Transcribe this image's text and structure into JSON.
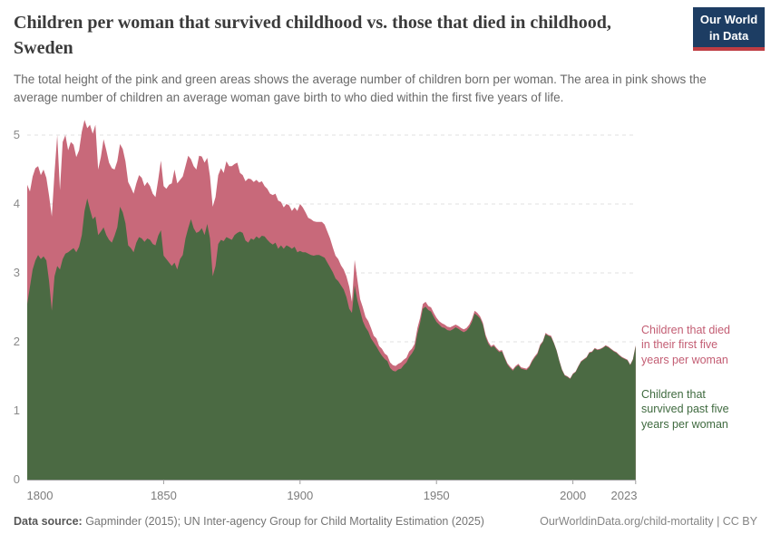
{
  "header": {
    "title": "Children per woman that survived childhood vs. those that died in childhood, Sweden",
    "subtitle": "The total height of the pink and green areas shows the average number of children born per woman. The area in pink shows the average number of children an average woman gave birth to who died within the first five years of life.",
    "logo": {
      "line1": "Our World",
      "line2": "in Data",
      "bg_color": "#1d3d63",
      "accent_color": "#bf3d43"
    }
  },
  "legend": {
    "died": {
      "color": "#c35d73",
      "lines": [
        "Children that died",
        "in their first five",
        "years per woman"
      ]
    },
    "survived": {
      "color": "#3f6a3f",
      "lines": [
        "Children that",
        "survived past five",
        "years per woman"
      ]
    }
  },
  "footer": {
    "source_label": "Data source:",
    "source_text": " Gapminder (2015); UN Inter-agency Group for Child Mortality Estimation (2025)",
    "right_text": "OurWorldinData.org/child-mortality | CC BY"
  },
  "chart_data": {
    "type": "area",
    "stacked": true,
    "title": "Children per woman that survived childhood vs. those that died in childhood, Sweden",
    "xlabel": "",
    "ylabel": "Children per woman",
    "start_year": 1800,
    "end_year": 2023,
    "ylim": [
      0,
      5.3
    ],
    "grid": "dashed",
    "yticks": [
      0,
      1,
      2,
      3,
      4,
      5
    ],
    "xticks": [
      1800,
      1850,
      1900,
      1950,
      2000,
      2023
    ],
    "colors": {
      "died_area": "#c8697a",
      "survived_area": "#4b6a43",
      "gridline": "#e2e2e2",
      "axis": "#9e9e9e"
    },
    "series_note": "born_total = survived + died; pink band is the gap between born_total and survived",
    "born_total": [
      4.28,
      4.18,
      4.4,
      4.52,
      4.55,
      4.42,
      4.5,
      4.38,
      4.12,
      3.82,
      4.45,
      5.0,
      4.2,
      4.9,
      5.0,
      4.78,
      4.9,
      4.86,
      4.68,
      4.78,
      5.05,
      5.22,
      5.1,
      5.15,
      5.02,
      5.15,
      4.5,
      4.68,
      4.94,
      4.78,
      4.6,
      4.52,
      4.5,
      4.62,
      4.87,
      4.8,
      4.62,
      4.32,
      4.24,
      4.15,
      4.3,
      4.42,
      4.38,
      4.26,
      4.32,
      4.26,
      4.15,
      4.1,
      4.35,
      4.63,
      4.26,
      4.22,
      4.28,
      4.3,
      4.5,
      4.3,
      4.35,
      4.4,
      4.55,
      4.7,
      4.65,
      4.55,
      4.5,
      4.7,
      4.69,
      4.6,
      4.67,
      4.4,
      3.96,
      4.1,
      4.42,
      4.52,
      4.45,
      4.62,
      4.55,
      4.55,
      4.58,
      4.6,
      4.45,
      4.42,
      4.33,
      4.37,
      4.36,
      4.32,
      4.35,
      4.31,
      4.33,
      4.26,
      4.22,
      4.15,
      4.13,
      4.15,
      4.05,
      4.03,
      3.95,
      4.0,
      3.98,
      3.9,
      3.95,
      3.9,
      4.0,
      3.95,
      3.88,
      3.8,
      3.78,
      3.75,
      3.74,
      3.74,
      3.74,
      3.7,
      3.6,
      3.5,
      3.37,
      3.25,
      3.2,
      3.11,
      3.05,
      2.95,
      2.8,
      2.58,
      3.19,
      2.9,
      2.62,
      2.5,
      2.36,
      2.3,
      2.2,
      2.09,
      2.05,
      1.94,
      1.9,
      1.83,
      1.8,
      1.7,
      1.66,
      1.65,
      1.68,
      1.7,
      1.74,
      1.77,
      1.86,
      1.9,
      1.97,
      2.2,
      2.35,
      2.55,
      2.58,
      2.52,
      2.5,
      2.42,
      2.35,
      2.3,
      2.27,
      2.25,
      2.22,
      2.21,
      2.23,
      2.25,
      2.23,
      2.2,
      2.18,
      2.2,
      2.25,
      2.33,
      2.45,
      2.42,
      2.37,
      2.28,
      2.1,
      2.0,
      1.94,
      1.96,
      1.91,
      1.87,
      1.88,
      1.78,
      1.69,
      1.64,
      1.6,
      1.65,
      1.68,
      1.63,
      1.62,
      1.61,
      1.65,
      1.73,
      1.79,
      1.84,
      1.96,
      2.01,
      2.13,
      2.1,
      2.09,
      1.99,
      1.88,
      1.73,
      1.6,
      1.52,
      1.5,
      1.47,
      1.54,
      1.57,
      1.65,
      1.72,
      1.75,
      1.78,
      1.85,
      1.86,
      1.91,
      1.89,
      1.9,
      1.92,
      1.95,
      1.93,
      1.9,
      1.87,
      1.85,
      1.81,
      1.78,
      1.76,
      1.74,
      1.67,
      1.75,
      1.95
    ],
    "survived": [
      2.55,
      2.8,
      3.05,
      3.18,
      3.26,
      3.2,
      3.24,
      3.18,
      2.88,
      2.45,
      2.95,
      3.1,
      3.05,
      3.2,
      3.28,
      3.3,
      3.33,
      3.36,
      3.3,
      3.38,
      3.55,
      3.9,
      4.08,
      3.92,
      3.78,
      3.82,
      3.55,
      3.6,
      3.66,
      3.55,
      3.48,
      3.44,
      3.54,
      3.66,
      3.96,
      3.88,
      3.72,
      3.4,
      3.36,
      3.3,
      3.44,
      3.52,
      3.5,
      3.45,
      3.5,
      3.48,
      3.42,
      3.4,
      3.54,
      3.62,
      3.25,
      3.2,
      3.15,
      3.1,
      3.15,
      3.05,
      3.2,
      3.26,
      3.5,
      3.65,
      3.78,
      3.65,
      3.58,
      3.6,
      3.65,
      3.55,
      3.71,
      3.5,
      2.95,
      3.1,
      3.42,
      3.48,
      3.46,
      3.52,
      3.5,
      3.48,
      3.55,
      3.58,
      3.6,
      3.58,
      3.47,
      3.44,
      3.5,
      3.48,
      3.53,
      3.5,
      3.54,
      3.53,
      3.48,
      3.44,
      3.41,
      3.44,
      3.35,
      3.4,
      3.35,
      3.4,
      3.38,
      3.35,
      3.38,
      3.3,
      3.32,
      3.3,
      3.3,
      3.28,
      3.26,
      3.25,
      3.26,
      3.26,
      3.24,
      3.22,
      3.15,
      3.08,
      3.01,
      2.92,
      2.88,
      2.82,
      2.76,
      2.65,
      2.48,
      2.42,
      2.82,
      2.6,
      2.45,
      2.3,
      2.21,
      2.15,
      2.05,
      1.99,
      1.93,
      1.86,
      1.8,
      1.75,
      1.72,
      1.62,
      1.58,
      1.57,
      1.6,
      1.61,
      1.66,
      1.7,
      1.78,
      1.83,
      1.9,
      2.12,
      2.28,
      2.48,
      2.51,
      2.46,
      2.44,
      2.36,
      2.29,
      2.25,
      2.21,
      2.2,
      2.17,
      2.16,
      2.18,
      2.21,
      2.19,
      2.16,
      2.14,
      2.16,
      2.21,
      2.29,
      2.41,
      2.38,
      2.34,
      2.25,
      2.07,
      1.97,
      1.92,
      1.94,
      1.89,
      1.85,
      1.86,
      1.76,
      1.67,
      1.62,
      1.58,
      1.63,
      1.66,
      1.61,
      1.6,
      1.59,
      1.63,
      1.71,
      1.77,
      1.82,
      1.94,
      2.0,
      2.11,
      2.09,
      2.07,
      1.98,
      1.87,
      1.72,
      1.59,
      1.51,
      1.49,
      1.46,
      1.53,
      1.56,
      1.64,
      1.71,
      1.74,
      1.77,
      1.84,
      1.85,
      1.9,
      1.88,
      1.89,
      1.91,
      1.94,
      1.92,
      1.89,
      1.86,
      1.84,
      1.8,
      1.77,
      1.75,
      1.73,
      1.66,
      1.74,
      1.94
    ]
  }
}
